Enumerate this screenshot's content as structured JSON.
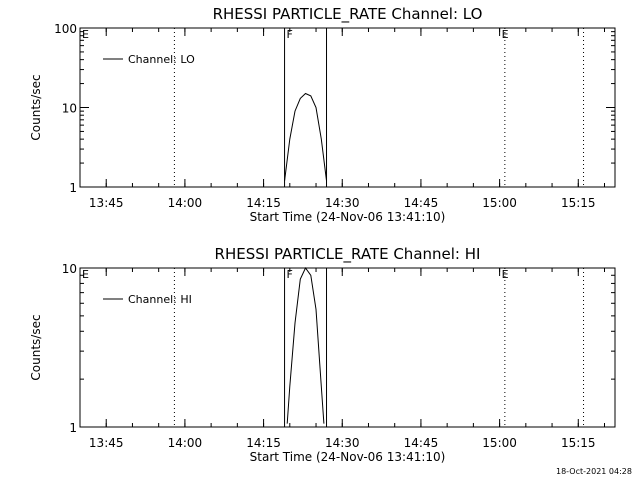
{
  "chart_data": [
    {
      "type": "line",
      "title": "RHESSI PARTICLE_RATE Channel: LO",
      "ylabel": "Counts/sec",
      "xlabel": "Start Time (24-Nov-06 13:41:10)",
      "yscale": "log",
      "ylim": [
        1,
        100
      ],
      "xlim": [
        "13:40",
        "15:22"
      ],
      "yticks": [
        "1",
        "10",
        "100"
      ],
      "xticks": [
        "13:45",
        "14:00",
        "14:15",
        "14:30",
        "14:45",
        "15:00",
        "15:15"
      ],
      "legend": {
        "label": "Channel: LO",
        "position": "top-left"
      },
      "flags": [
        {
          "text": "E",
          "x": "13:40"
        },
        {
          "text": "F",
          "x": "14:19"
        },
        {
          "text": "E",
          "x": "15:00"
        }
      ],
      "vlines_solid": [
        "14:19",
        "14:27"
      ],
      "vlines_dotted": [
        "13:58",
        "15:01",
        "15:16"
      ],
      "series": [
        {
          "name": "Channel: LO",
          "x": [
            "14:19",
            "14:20",
            "14:21",
            "14:22",
            "14:23",
            "14:24",
            "14:25",
            "14:26",
            "14:27"
          ],
          "values": [
            1.2,
            4,
            9,
            13,
            15,
            14,
            10,
            4,
            1.2
          ]
        }
      ]
    },
    {
      "type": "line",
      "title": "RHESSI PARTICLE_RATE Channel: HI",
      "ylabel": "Counts/sec",
      "xlabel": "Start Time (24-Nov-06 13:41:10)",
      "yscale": "log",
      "ylim": [
        1,
        10
      ],
      "xlim": [
        "13:40",
        "15:22"
      ],
      "yticks": [
        "1",
        "10"
      ],
      "xticks": [
        "13:45",
        "14:00",
        "14:15",
        "14:30",
        "14:45",
        "15:00",
        "15:15"
      ],
      "legend": {
        "label": "Channel: HI",
        "position": "top-left"
      },
      "flags": [
        {
          "text": "E",
          "x": "13:40"
        },
        {
          "text": "F",
          "x": "14:19"
        },
        {
          "text": "E",
          "x": "15:00"
        }
      ],
      "vlines_solid": [
        "14:19",
        "14:27"
      ],
      "vlines_dotted": [
        "13:58",
        "15:01",
        "15:16"
      ],
      "series": [
        {
          "name": "Channel: HI",
          "x": [
            "14:19.5",
            "14:20",
            "14:21",
            "14:22",
            "14:23",
            "14:24",
            "14:25",
            "14:26",
            "14:26.5"
          ],
          "values": [
            1.05,
            1.8,
            4.5,
            8.5,
            10,
            9,
            5.5,
            1.8,
            1.05
          ]
        }
      ]
    }
  ],
  "footer": {
    "timestamp": "18-Oct-2021 04:28"
  }
}
